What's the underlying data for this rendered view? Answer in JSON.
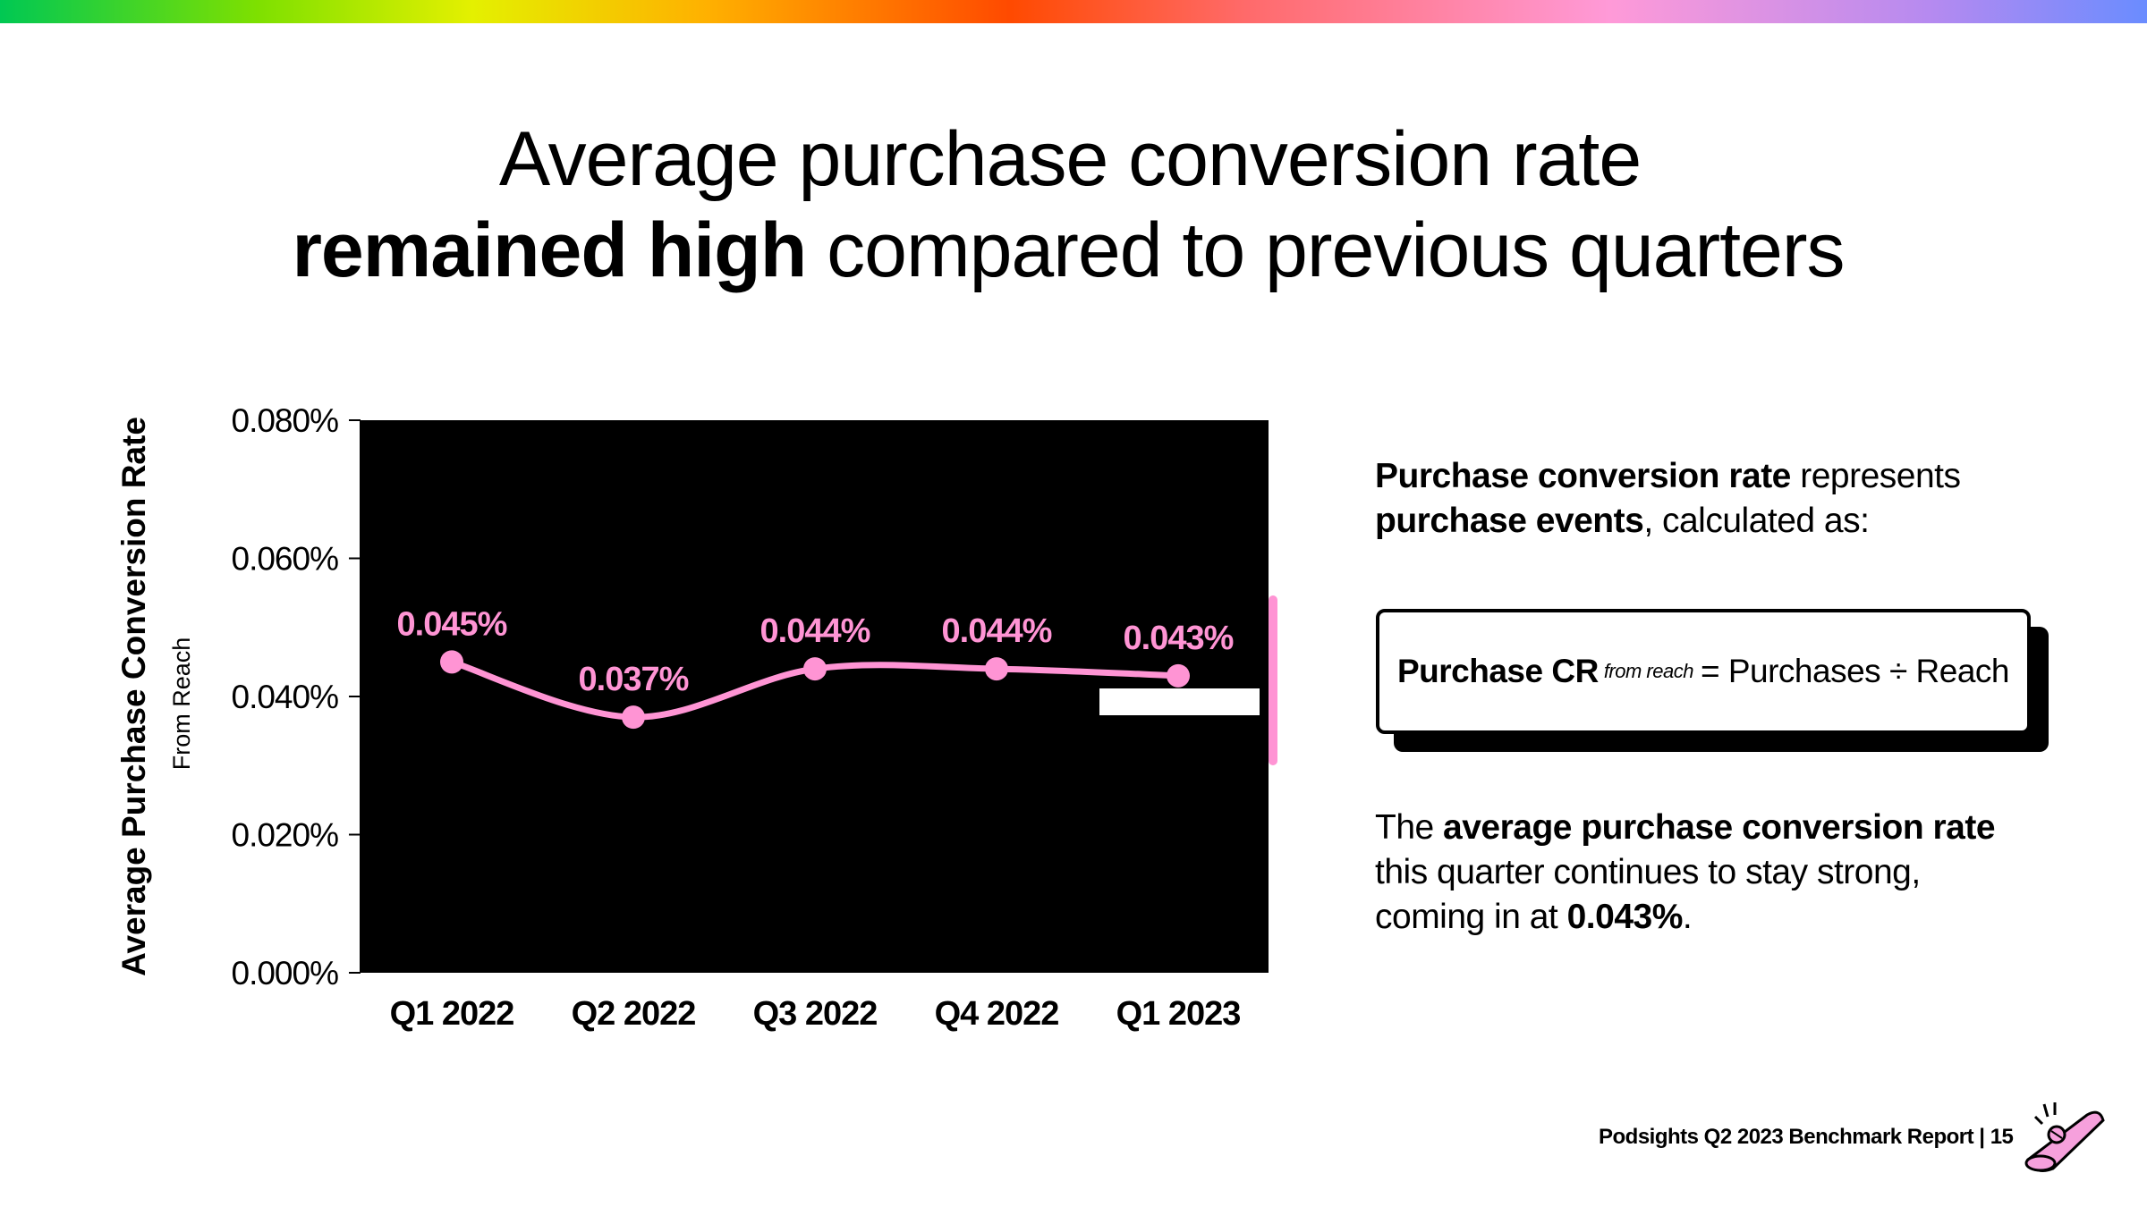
{
  "title": {
    "line1": "Average purchase conversion rate",
    "line2_bold": "remained high",
    "line2_rest": " compared to previous quarters"
  },
  "chart_data": {
    "type": "line",
    "categories": [
      "Q1 2022",
      "Q2 2022",
      "Q3 2022",
      "Q4 2022",
      "Q1 2023"
    ],
    "values": [
      0.045,
      0.037,
      0.044,
      0.044,
      0.043
    ],
    "data_labels": [
      "0.045%",
      "0.037%",
      "0.044%",
      "0.044%",
      "0.043%"
    ],
    "ylabel": "Average Purchase Conversion Rate",
    "ylabel_sub": "From Reach",
    "ylim": [
      0,
      0.08
    ],
    "yticks": [
      "0.000%",
      "0.020%",
      "0.040%",
      "0.060%",
      "0.080%"
    ],
    "ytick_values": [
      0,
      0.02,
      0.04,
      0.06,
      0.08
    ],
    "grid": false,
    "line_color": "#ff94d4",
    "plot_background": "#000000"
  },
  "description": {
    "p1_bold1": "Purchase conversion rate",
    "p1_text1": " represents",
    "p1_bold2": "purchase events",
    "p1_text2": ", calculated as:",
    "p2_text1": "The ",
    "p2_bold1": "average purchase conversion rate",
    "p2_text2": "this quarter continues to stay strong,",
    "p2_text3": "coming in at ",
    "p2_bold2": "0.043%",
    "p2_text4": "."
  },
  "formula": {
    "lhs": "Purchase CR",
    "sub": "from reach",
    "rhs": "= Purchases ÷ Reach"
  },
  "footer": {
    "text": "Podsights Q2 2023 Benchmark Report | 15"
  }
}
